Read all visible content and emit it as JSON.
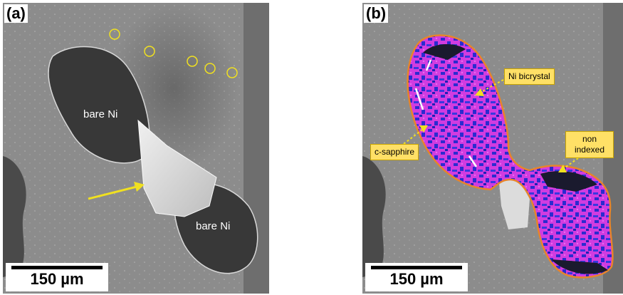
{
  "panel_a": {
    "label": "(a)",
    "region_labels": [
      "bare Ni",
      "bare Ni"
    ],
    "scalebar": "150 µm"
  },
  "panel_b": {
    "label": "(b)",
    "callouts": {
      "ni_bicrystal": "Ni bicrystal",
      "c_sapphire": "c-sapphire",
      "non_indexed_line1": "non",
      "non_indexed_line2": "indexed"
    },
    "scalebar": "150 µm"
  },
  "colors": {
    "substrate": "#8a8a8a",
    "void": "#3a3a3a",
    "outline": "#e8842a",
    "marker": "#f0e020",
    "callout_bg": "#ffe066",
    "ebsd_magenta": "#d13ce0",
    "ebsd_blue": "#2b2bd0"
  }
}
